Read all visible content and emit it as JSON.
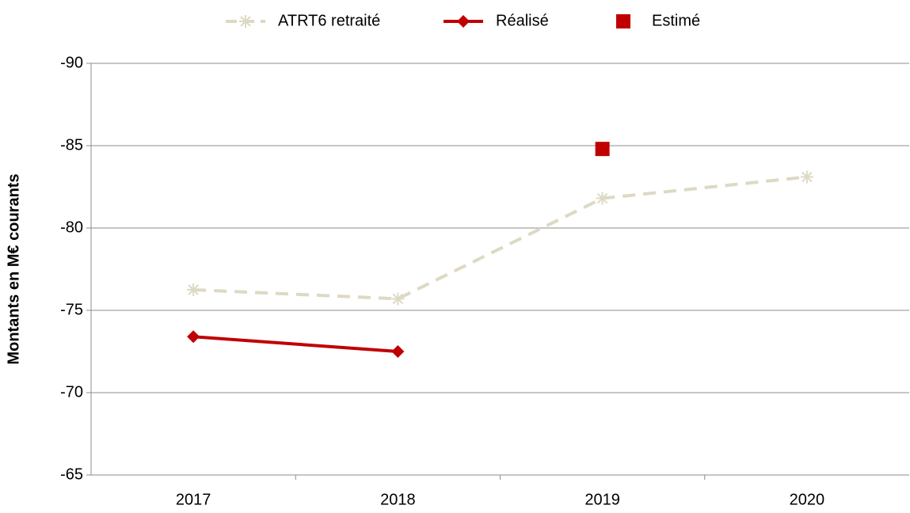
{
  "chart_data": {
    "type": "line",
    "y_label": "Montants en M€ courants",
    "categories": [
      "2017",
      "2018",
      "2019",
      "2020"
    ],
    "series": [
      {
        "name": "ATRT6 retraité",
        "color": "#ddd9c3",
        "marker": "star",
        "line_style": "dashed",
        "values": [
          -76.25,
          -75.7,
          -81.8,
          -83.1
        ]
      },
      {
        "name": "Réalisé",
        "color": "#c00000",
        "marker": "diamond",
        "line_style": "solid",
        "values": [
          -73.4,
          -72.5,
          null,
          null
        ]
      },
      {
        "name": "Estimé",
        "color": "#c00000",
        "marker": "square",
        "line_style": "none",
        "values": [
          null,
          null,
          -84.8,
          null
        ]
      }
    ],
    "ylim": [
      -65,
      -90
    ],
    "yticks": [
      -65,
      -70,
      -75,
      -80,
      -85,
      -90
    ],
    "grid": true,
    "legend": "top"
  }
}
